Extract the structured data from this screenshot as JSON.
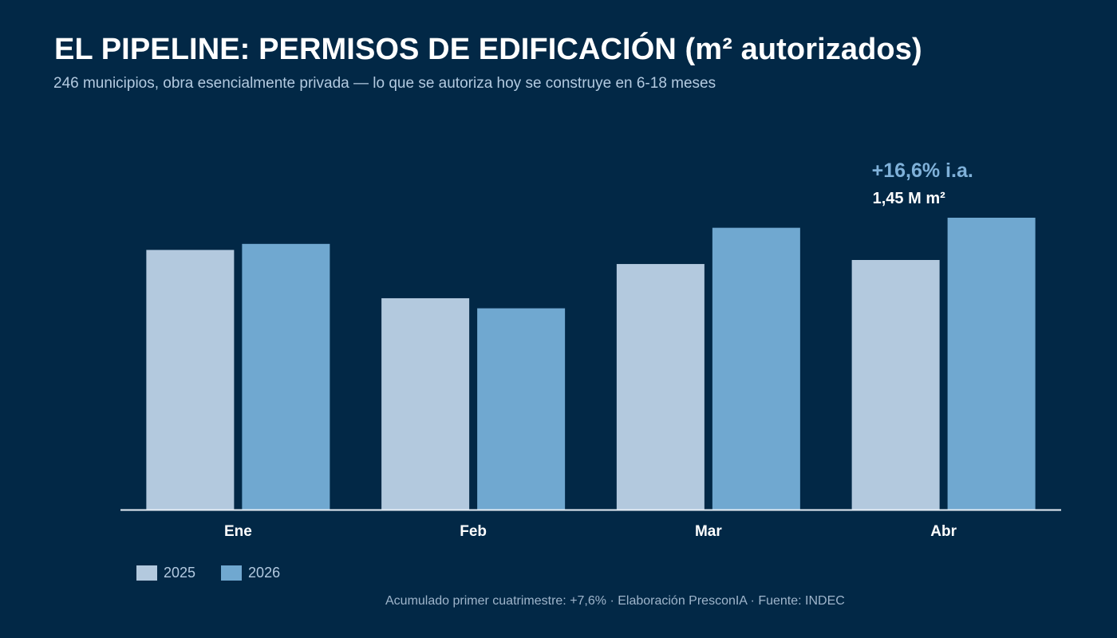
{
  "title": "EL PIPELINE: PERMISOS DE EDIFICACIÓN (m² autorizados)",
  "subtitle": "246 municipios, obra esencialmente privada — lo que se autoriza hoy se construye en 6-18 meses",
  "footnote": "Acumulado primer cuatrimestre: +7,6% · Elaboración PresconIA · Fuente: INDEC",
  "colors": {
    "background": "#022846",
    "series_2025": "#b3c9de",
    "series_2026": "#70a8d0",
    "annotation_pct": "#7fb1d9",
    "axis": "#e6eef5"
  },
  "annotation": {
    "category": "Abr",
    "pct_label": "+16,6% i.a.",
    "value_label": "1,45 M m²"
  },
  "chart_data": {
    "type": "bar",
    "categories": [
      "Ene",
      "Feb",
      "Mar",
      "Abr"
    ],
    "series": [
      {
        "name": "2025",
        "values": [
          1.29,
          1.05,
          1.22,
          1.24
        ]
      },
      {
        "name": "2026",
        "values": [
          1.32,
          1.0,
          1.4,
          1.45
        ]
      }
    ],
    "unit": "M m²",
    "ylim": [
      0,
      1.45
    ],
    "grid": false,
    "legend": "bottom-left",
    "xlabel": "",
    "ylabel": ""
  }
}
